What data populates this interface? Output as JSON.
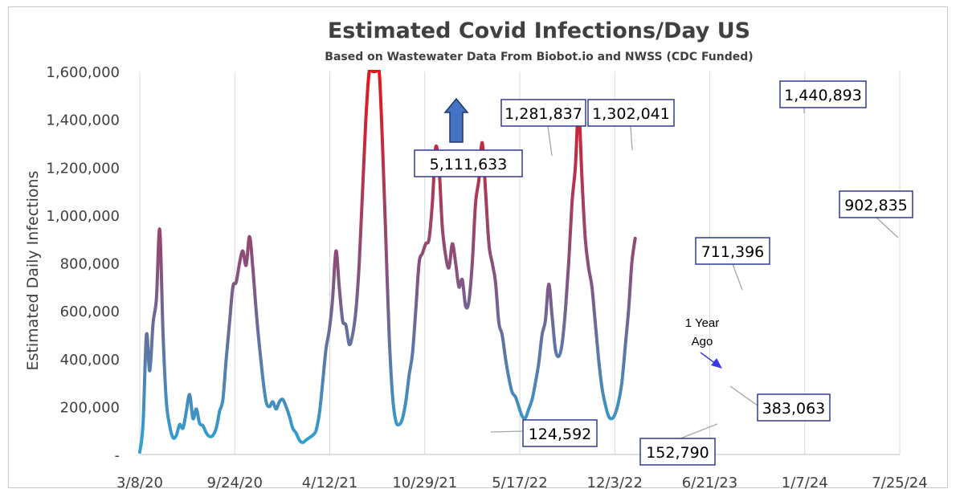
{
  "chart_data": {
    "type": "line",
    "title": "Estimated Covid Infections/Day US",
    "subtitle": "Based on Wastewater Data From Biobot.io and NWSS (CDC Funded)",
    "xlabel": "",
    "ylabel": "Estimated Daily Infections",
    "ylim": [
      0,
      1600000
    ],
    "yticks": [
      0,
      200000,
      400000,
      600000,
      800000,
      1000000,
      1200000,
      1400000,
      1600000
    ],
    "ytick_labels": [
      "-",
      "200,000",
      "400,000",
      "600,000",
      "800,000",
      "1,000,000",
      "1,200,000",
      "1,400,000",
      "1,600,000"
    ],
    "x_start": "2020-03-08",
    "x_end": "2024-07-25",
    "xticks": [
      "2020-03-08",
      "2020-09-24",
      "2021-04-12",
      "2021-10-29",
      "2022-05-17",
      "2022-12-03",
      "2023-06-21",
      "2024-01-07",
      "2024-07-25"
    ],
    "xtick_labels": [
      "3/8/20",
      "9/24/20",
      "4/12/21",
      "10/29/21",
      "5/17/22",
      "12/3/22",
      "6/21/23",
      "1/7/24",
      "7/25/24"
    ],
    "grid": "vertical",
    "line_color_gradient": {
      "low": "#2aa5d6",
      "high": "#e8141c"
    },
    "series": [
      {
        "points": [
          [
            "2020-03-08",
            10000
          ],
          [
            "2020-03-15",
            130000
          ],
          [
            "2020-03-22",
            500000
          ],
          [
            "2020-03-29",
            350000
          ],
          [
            "2020-04-05",
            550000
          ],
          [
            "2020-04-12",
            650000
          ],
          [
            "2020-04-19",
            940000
          ],
          [
            "2020-04-26",
            500000
          ],
          [
            "2020-05-03",
            220000
          ],
          [
            "2020-05-10",
            120000
          ],
          [
            "2020-05-17",
            70000
          ],
          [
            "2020-05-24",
            80000
          ],
          [
            "2020-05-31",
            125000
          ],
          [
            "2020-06-07",
            110000
          ],
          [
            "2020-06-14",
            180000
          ],
          [
            "2020-06-21",
            250000
          ],
          [
            "2020-06-28",
            150000
          ],
          [
            "2020-07-05",
            190000
          ],
          [
            "2020-07-12",
            130000
          ],
          [
            "2020-07-19",
            120000
          ],
          [
            "2020-07-26",
            90000
          ],
          [
            "2020-08-02",
            75000
          ],
          [
            "2020-08-09",
            80000
          ],
          [
            "2020-08-16",
            110000
          ],
          [
            "2020-08-23",
            180000
          ],
          [
            "2020-08-30",
            230000
          ],
          [
            "2020-09-06",
            400000
          ],
          [
            "2020-09-13",
            550000
          ],
          [
            "2020-09-20",
            700000
          ],
          [
            "2020-09-27",
            720000
          ],
          [
            "2020-10-04",
            800000
          ],
          [
            "2020-10-11",
            850000
          ],
          [
            "2020-10-18",
            790000
          ],
          [
            "2020-10-25",
            910000
          ],
          [
            "2020-11-01",
            780000
          ],
          [
            "2020-11-08",
            600000
          ],
          [
            "2020-11-15",
            450000
          ],
          [
            "2020-11-22",
            320000
          ],
          [
            "2020-11-29",
            220000
          ],
          [
            "2020-12-06",
            200000
          ],
          [
            "2020-12-13",
            220000
          ],
          [
            "2020-12-20",
            190000
          ],
          [
            "2020-12-27",
            220000
          ],
          [
            "2021-01-03",
            230000
          ],
          [
            "2021-01-10",
            200000
          ],
          [
            "2021-01-17",
            160000
          ],
          [
            "2021-01-24",
            110000
          ],
          [
            "2021-01-31",
            90000
          ],
          [
            "2021-02-07",
            60000
          ],
          [
            "2021-02-14",
            50000
          ],
          [
            "2021-02-21",
            60000
          ],
          [
            "2021-02-28",
            70000
          ],
          [
            "2021-03-07",
            80000
          ],
          [
            "2021-03-14",
            100000
          ],
          [
            "2021-03-21",
            170000
          ],
          [
            "2021-03-28",
            300000
          ],
          [
            "2021-04-04",
            440000
          ],
          [
            "2021-04-11",
            520000
          ],
          [
            "2021-04-18",
            650000
          ],
          [
            "2021-04-25",
            850000
          ],
          [
            "2021-05-02",
            700000
          ],
          [
            "2021-05-09",
            560000
          ],
          [
            "2021-05-16",
            540000
          ],
          [
            "2021-05-23",
            460000
          ],
          [
            "2021-05-30",
            500000
          ],
          [
            "2021-06-06",
            600000
          ],
          [
            "2021-06-13",
            800000
          ],
          [
            "2021-06-20",
            1100000
          ],
          [
            "2021-06-27",
            1400000
          ],
          [
            "2021-07-04",
            1600000
          ],
          [
            "2021-07-11",
            1600000
          ],
          [
            "2021-07-18",
            1600000
          ],
          [
            "2021-07-25",
            1600000
          ],
          [
            "2021-08-01",
            1300000
          ],
          [
            "2021-08-08",
            900000
          ],
          [
            "2021-08-15",
            500000
          ],
          [
            "2021-08-22",
            250000
          ],
          [
            "2021-08-29",
            140000
          ],
          [
            "2021-09-05",
            125000
          ],
          [
            "2021-09-12",
            150000
          ],
          [
            "2021-09-19",
            220000
          ],
          [
            "2021-09-26",
            330000
          ],
          [
            "2021-10-03",
            420000
          ],
          [
            "2021-10-10",
            600000
          ],
          [
            "2021-10-17",
            800000
          ],
          [
            "2021-10-24",
            840000
          ],
          [
            "2021-10-31",
            880000
          ],
          [
            "2021-11-07",
            900000
          ],
          [
            "2021-11-14",
            1050000
          ],
          [
            "2021-11-21",
            1282000
          ],
          [
            "2021-11-28",
            1200000
          ],
          [
            "2021-12-05",
            950000
          ],
          [
            "2021-12-12",
            830000
          ],
          [
            "2021-12-19",
            780000
          ],
          [
            "2021-12-26",
            880000
          ],
          [
            "2022-01-02",
            800000
          ],
          [
            "2022-01-09",
            700000
          ],
          [
            "2022-01-16",
            730000
          ],
          [
            "2022-01-23",
            620000
          ],
          [
            "2022-01-30",
            640000
          ],
          [
            "2022-02-06",
            800000
          ],
          [
            "2022-02-13",
            1050000
          ],
          [
            "2022-02-20",
            1150000
          ],
          [
            "2022-02-27",
            1302000
          ],
          [
            "2022-03-06",
            1100000
          ],
          [
            "2022-03-13",
            880000
          ],
          [
            "2022-03-20",
            800000
          ],
          [
            "2022-03-27",
            720000
          ],
          [
            "2022-04-03",
            550000
          ],
          [
            "2022-04-10",
            500000
          ],
          [
            "2022-04-17",
            400000
          ],
          [
            "2022-04-24",
            320000
          ],
          [
            "2022-05-01",
            260000
          ],
          [
            "2022-05-08",
            240000
          ],
          [
            "2022-05-15",
            200000
          ],
          [
            "2022-05-22",
            160000
          ],
          [
            "2022-05-29",
            153000
          ],
          [
            "2022-06-05",
            190000
          ],
          [
            "2022-06-12",
            230000
          ],
          [
            "2022-06-19",
            300000
          ],
          [
            "2022-06-26",
            383000
          ],
          [
            "2022-07-03",
            500000
          ],
          [
            "2022-07-10",
            560000
          ],
          [
            "2022-07-17",
            711000
          ],
          [
            "2022-07-24",
            580000
          ],
          [
            "2022-07-31",
            440000
          ],
          [
            "2022-08-07",
            410000
          ],
          [
            "2022-08-14",
            460000
          ],
          [
            "2022-08-21",
            600000
          ],
          [
            "2022-08-28",
            800000
          ],
          [
            "2022-09-04",
            1050000
          ],
          [
            "2022-09-11",
            1200000
          ],
          [
            "2022-09-18",
            1441000
          ],
          [
            "2022-09-25",
            1150000
          ],
          [
            "2022-10-02",
            900000
          ],
          [
            "2022-10-09",
            780000
          ],
          [
            "2022-10-16",
            700000
          ],
          [
            "2022-10-23",
            550000
          ],
          [
            "2022-10-30",
            400000
          ],
          [
            "2022-11-06",
            280000
          ],
          [
            "2022-11-13",
            210000
          ],
          [
            "2022-11-20",
            160000
          ],
          [
            "2022-11-27",
            150000
          ],
          [
            "2022-12-04",
            170000
          ],
          [
            "2022-12-11",
            220000
          ],
          [
            "2022-12-18",
            300000
          ],
          [
            "2022-12-25",
            450000
          ],
          [
            "2023-01-01",
            600000
          ],
          [
            "2023-01-08",
            800000
          ],
          [
            "2023-01-15",
            903000
          ]
        ]
      }
    ],
    "arrow_annotation": {
      "direction": "up",
      "color": "#4472c4"
    },
    "callouts": [
      {
        "text": "5,111,633"
      },
      {
        "text": "124,592"
      },
      {
        "text": "1,281,837"
      },
      {
        "text": "1,302,041"
      },
      {
        "text": "152,790"
      },
      {
        "text": "711,396"
      },
      {
        "text": "383,063"
      },
      {
        "text": "1,440,893"
      },
      {
        "text": "902,835"
      }
    ],
    "notes": [
      {
        "lines": [
          "1 Year",
          "Ago"
        ]
      }
    ]
  }
}
